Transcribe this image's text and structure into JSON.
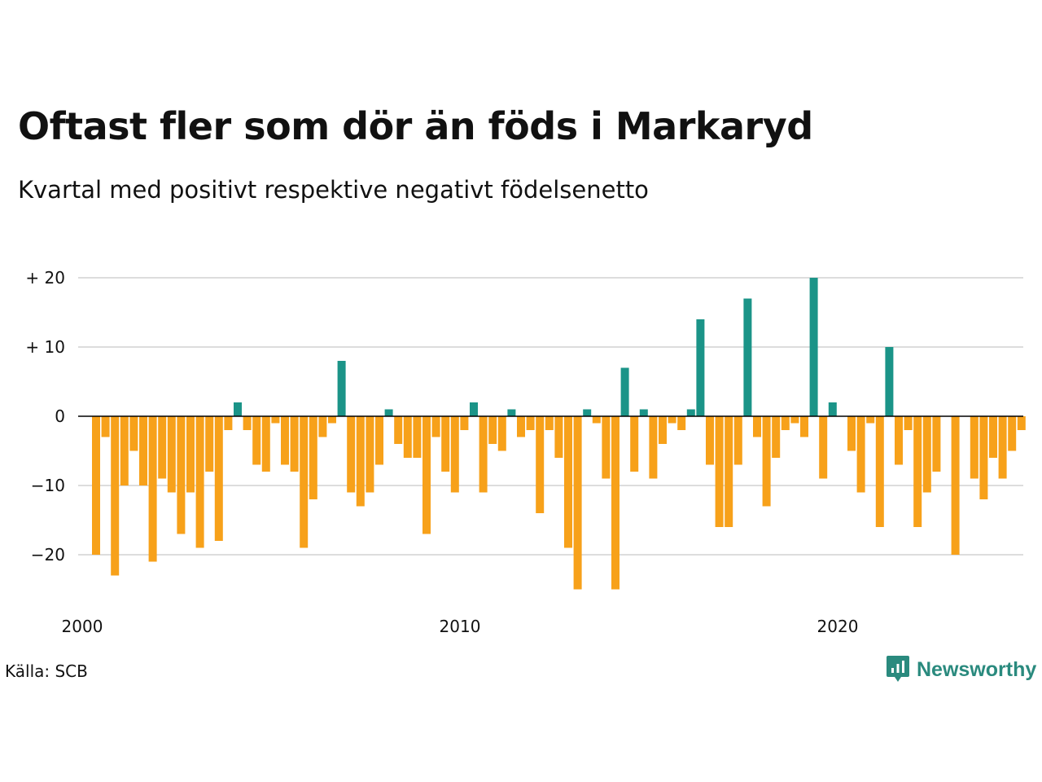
{
  "colors": {
    "positive": "#1b9488",
    "negative": "#f7a11a",
    "grid": "#dddddd",
    "axis": "#000000",
    "brand": "#2a8a7e"
  },
  "header": {
    "title": "Oftast fler som dör än föds i Markaryd",
    "subtitle": "Kvartal med positivt respektive negativt födelsenetto"
  },
  "footer": {
    "source": "Källa: SCB",
    "brand_name": "Newsworthy",
    "brand_icon": "newsworthy-logo-icon"
  },
  "chart_data": {
    "type": "bar",
    "title": "Oftast fler som dör än föds i Markaryd",
    "subtitle": "Kvartal med positivt respektive negativt födelsenetto",
    "xlabel": "",
    "ylabel": "",
    "x_start": 2000,
    "x_end": 2025,
    "periods_per_year": 4,
    "x_ticks": [
      2000,
      2010,
      2020
    ],
    "x_tick_labels": [
      "2000",
      "2010",
      "2020"
    ],
    "y_ticks": [
      20,
      10,
      0,
      -10,
      -20
    ],
    "y_tick_labels": [
      "+ 20",
      "+ 10",
      "0",
      "−10",
      "−20"
    ],
    "ylim": [
      -25,
      20
    ],
    "grid": true,
    "legend": "none",
    "values": [
      -20,
      -3,
      -23,
      -10,
      -5,
      -10,
      -21,
      -9,
      -11,
      -17,
      -11,
      -19,
      -8,
      -18,
      -2,
      2,
      -2,
      -7,
      -8,
      -1,
      -7,
      -8,
      -19,
      -12,
      -3,
      -1,
      8,
      -11,
      -13,
      -11,
      -7,
      1,
      -4,
      -6,
      -6,
      -17,
      -3,
      -8,
      -11,
      -2,
      2,
      -11,
      -4,
      -5,
      1,
      -3,
      -2,
      -14,
      -2,
      -6,
      -19,
      -25,
      1,
      -1,
      -9,
      -25,
      7,
      -8,
      1,
      -9,
      -4,
      -1,
      -2,
      1,
      14,
      -7,
      -16,
      -16,
      -7,
      17,
      -3,
      -13,
      -6,
      -2,
      -1,
      -3,
      20,
      -9,
      2,
      0,
      -5,
      -11,
      -1,
      -16,
      10,
      -7,
      -2,
      -16,
      -11,
      -8,
      0,
      -20,
      0,
      -9,
      -12,
      -6,
      -9,
      -5,
      -2
    ]
  }
}
